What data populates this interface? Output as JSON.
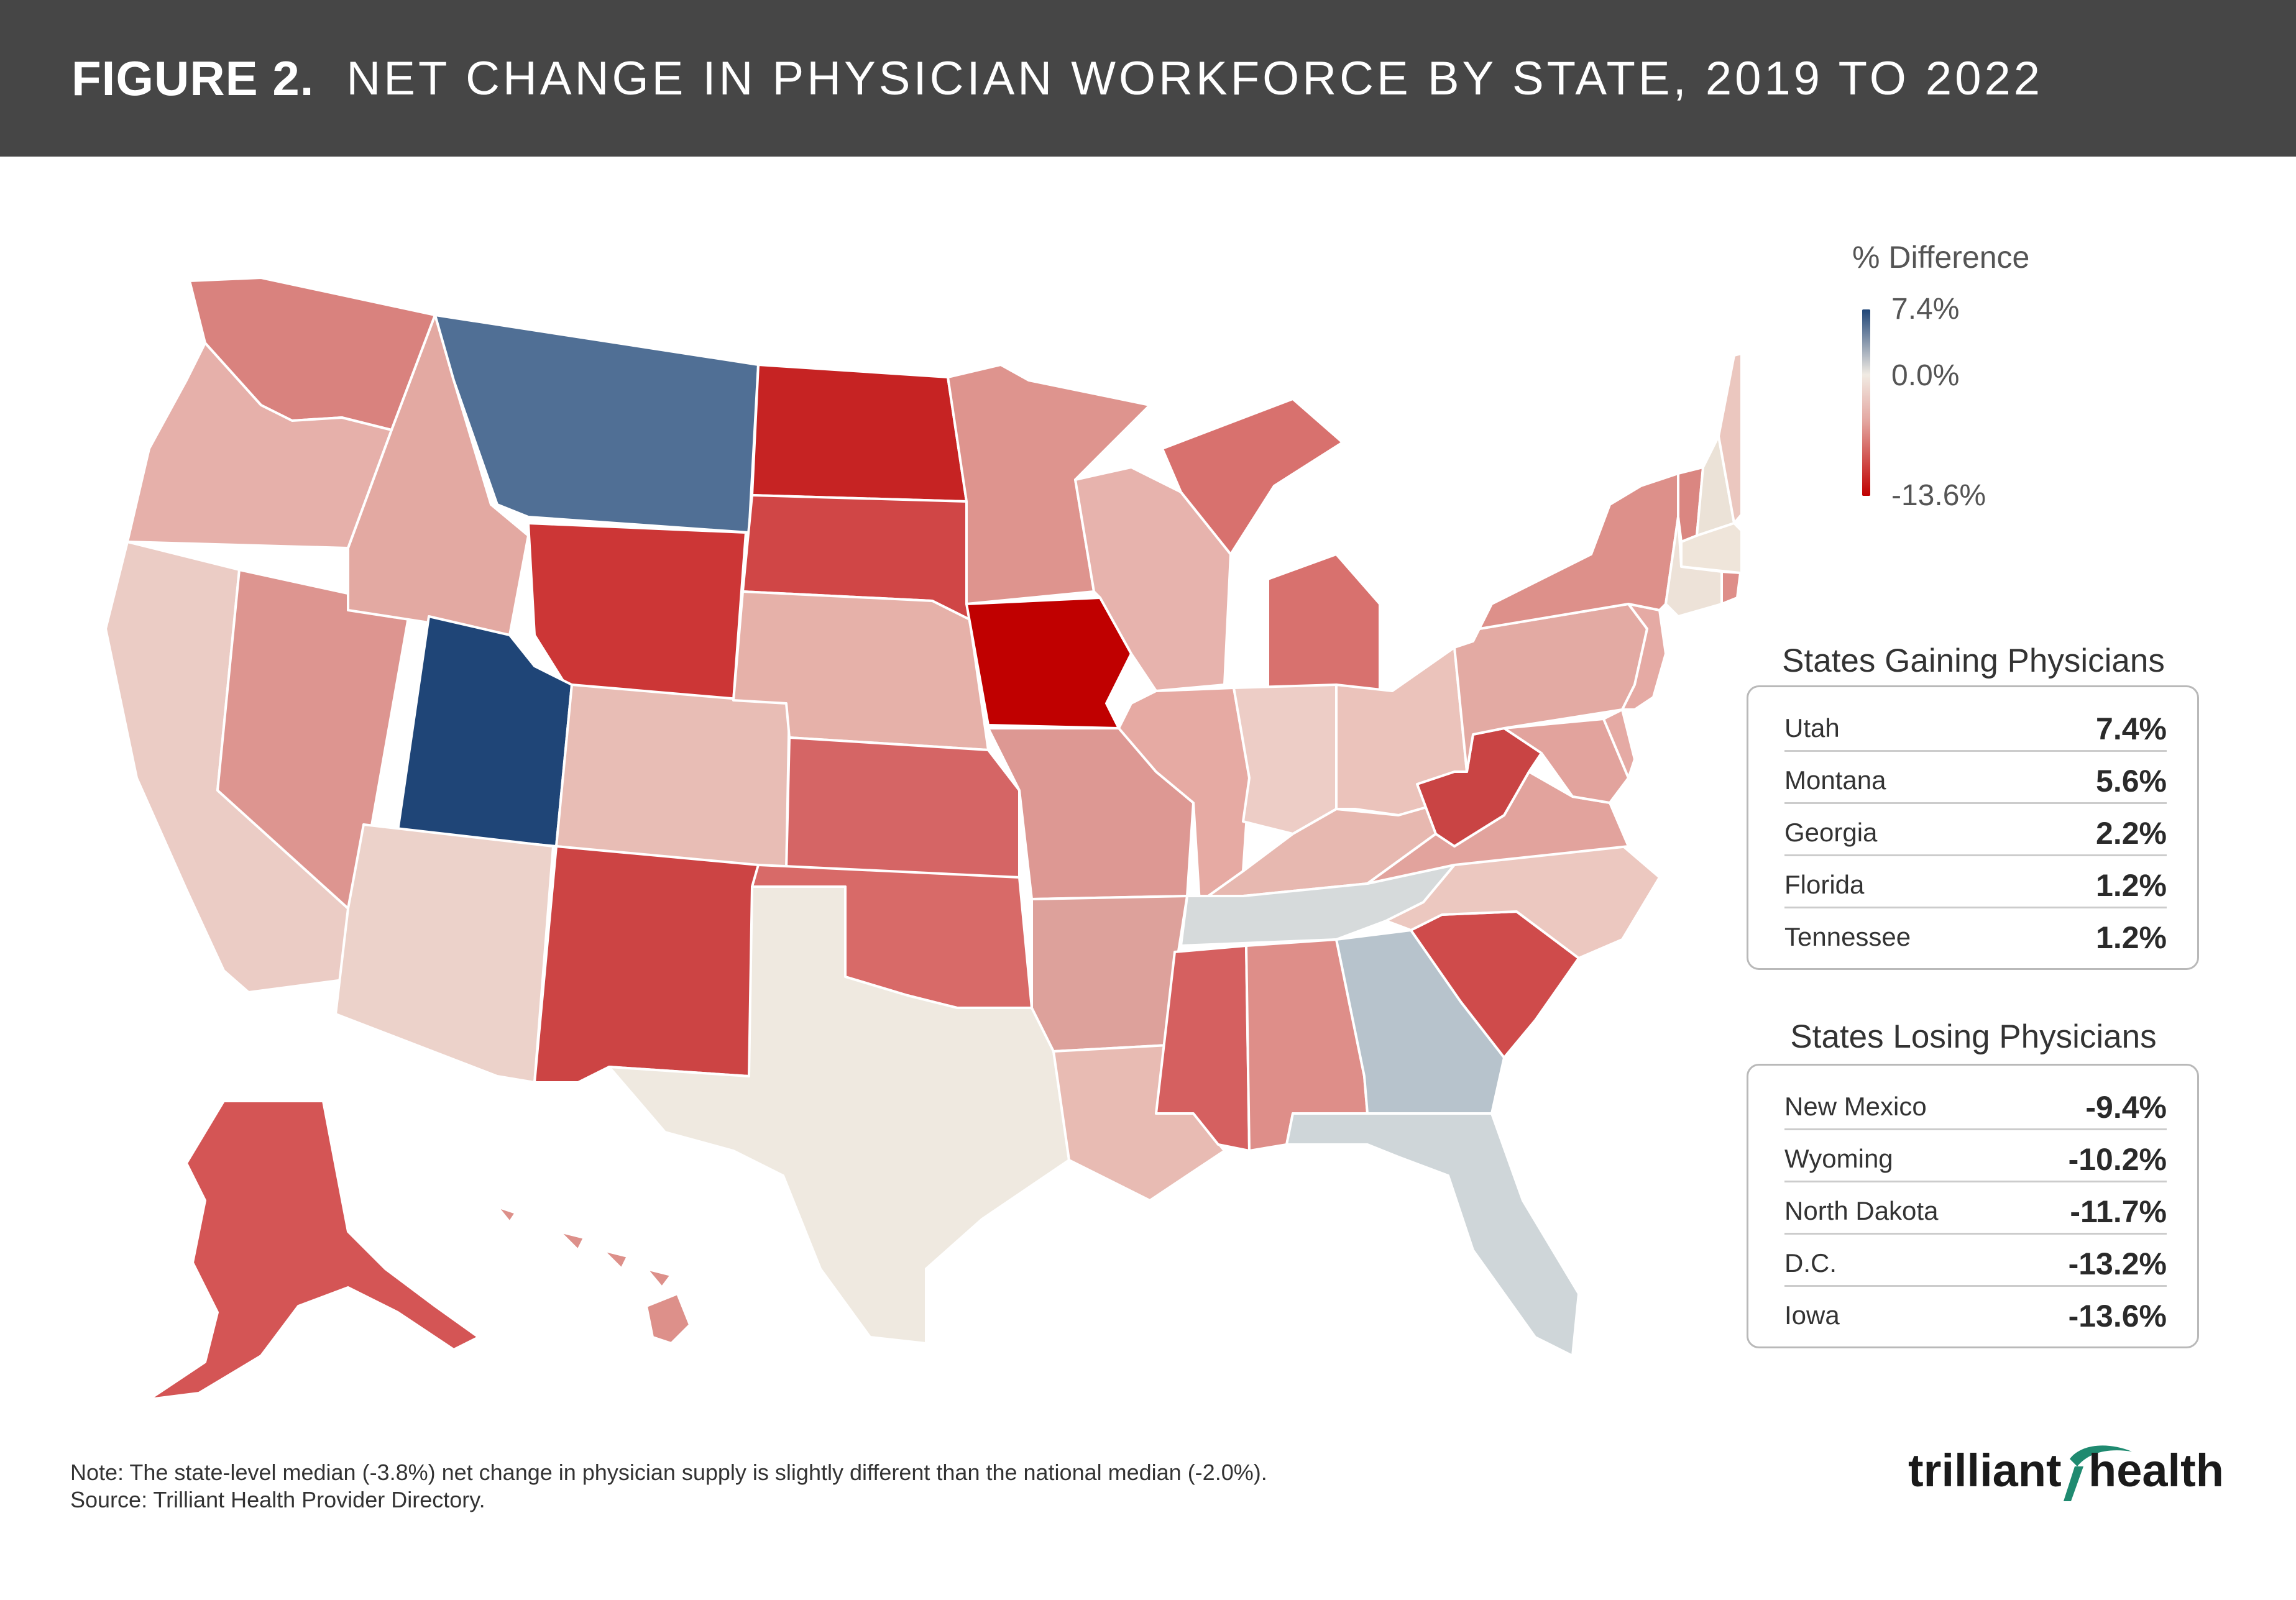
{
  "header": {
    "figure_label": "FIGURE 2.",
    "title": "NET CHANGE IN PHYSICIAN WORKFORCE BY STATE, 2019 TO 2022"
  },
  "legend": {
    "title": "% Difference",
    "max_label": "7.4%",
    "mid_label": "0.0%",
    "min_label": "-13.6%",
    "color_max": "#1f4577",
    "color_mid": "#f1ebe3",
    "color_min": "#c00000"
  },
  "gaining": {
    "title": "States Gaining Physicians",
    "rows": [
      {
        "state": "Utah",
        "value": "7.4%"
      },
      {
        "state": "Montana",
        "value": "5.6%"
      },
      {
        "state": "Georgia",
        "value": "2.2%"
      },
      {
        "state": "Florida",
        "value": "1.2%"
      },
      {
        "state": "Tennessee",
        "value": "1.2%"
      }
    ]
  },
  "losing": {
    "title": "States Losing Physicians",
    "rows": [
      {
        "state": "New Mexico",
        "value": "-9.4%"
      },
      {
        "state": "Wyoming",
        "value": "-10.2%"
      },
      {
        "state": "North Dakota",
        "value": "-11.7%"
      },
      {
        "state": "D.C.",
        "value": "-13.2%"
      },
      {
        "state": "Iowa",
        "value": "-13.6%"
      }
    ]
  },
  "map_colors": {
    "WA": "#d9827e",
    "OR": "#e6b0aa",
    "CA": "#ebccc5",
    "NV": "#dd9590",
    "ID": "#e3a9a2",
    "MT": "#506f95",
    "WY": "#cc3636",
    "UT": "#1f4577",
    "AZ": "#ecd2ca",
    "CO": "#e8bdb5",
    "NM": "#cc4444",
    "ND": "#c62323",
    "SD": "#d04646",
    "NE": "#e6b1a9",
    "KS": "#d56565",
    "OK": "#d86a68",
    "TX": "#efe9e0",
    "MN": "#de948e",
    "IA": "#c00000",
    "MO": "#dd9893",
    "AR": "#dda19b",
    "LA": "#e8bbb3",
    "WI": "#e7b3ad",
    "IL": "#e6aaa3",
    "MI": "#d8716e",
    "IN": "#edcdc6",
    "OH": "#ebc3bb",
    "KY": "#e7b8b0",
    "TN": "#d6dadb",
    "MS": "#d56060",
    "AL": "#de8e89",
    "GA": "#b7c3cc",
    "FL": "#cfd6d9",
    "SC": "#cf4b4b",
    "NC": "#ecc8c0",
    "VA": "#e2a39d",
    "WV": "#c94444",
    "PA": "#e3aaa3",
    "NY": "#dd908a",
    "VT": "#da8681",
    "NH": "#ebe2d7",
    "ME": "#ebc7bf",
    "MA": "#efe5da",
    "CT": "#ede2d8",
    "RI": "#de8e89",
    "NJ": "#e5aaa4",
    "DE": "#e5aaa4",
    "MD": "#e2a39d",
    "AK": "#d45555",
    "HI": "#dd908a"
  },
  "footnote": {
    "note": "Note: The state-level median (-3.8%) net change in physician supply is slightly different than the national median (-2.0%).",
    "source": "Source: Trilliant Health Provider Directory."
  },
  "logo": {
    "text_left": "trilliant",
    "text_right": "health",
    "color_text": "#1a1a1a",
    "color_accent": "#1f8a70"
  }
}
